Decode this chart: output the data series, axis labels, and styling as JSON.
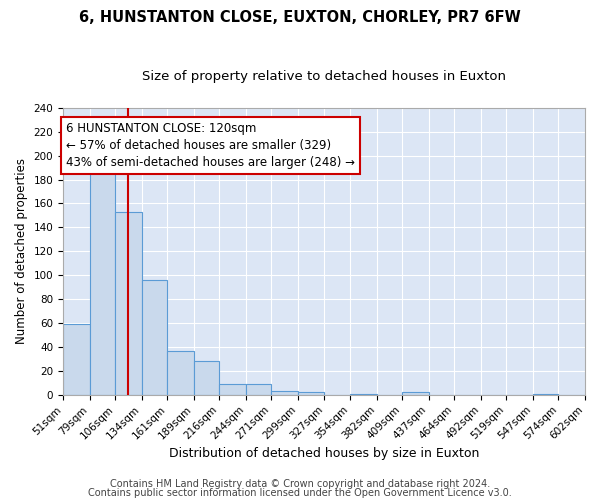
{
  "title": "6, HUNSTANTON CLOSE, EUXTON, CHORLEY, PR7 6FW",
  "subtitle": "Size of property relative to detached houses in Euxton",
  "xlabel": "Distribution of detached houses by size in Euxton",
  "ylabel": "Number of detached properties",
  "bar_edges": [
    51,
    79,
    106,
    134,
    161,
    189,
    216,
    244,
    271,
    299,
    327,
    354,
    382,
    409,
    437,
    464,
    492,
    519,
    547,
    574,
    602
  ],
  "bar_heights": [
    59,
    186,
    153,
    96,
    37,
    28,
    9,
    9,
    3,
    2,
    0,
    1,
    0,
    2,
    0,
    0,
    0,
    0,
    1,
    0
  ],
  "bar_color": "#c9d9ec",
  "bar_edge_color": "#5b9bd5",
  "vline_x": 120,
  "vline_color": "#cc0000",
  "annotation_title": "6 HUNSTANTON CLOSE: 120sqm",
  "annotation_line1": "← 57% of detached houses are smaller (329)",
  "annotation_line2": "43% of semi-detached houses are larger (248) →",
  "annotation_box_color": "#ffffff",
  "annotation_box_edge": "#cc0000",
  "ylim": [
    0,
    240
  ],
  "yticks": [
    0,
    20,
    40,
    60,
    80,
    100,
    120,
    140,
    160,
    180,
    200,
    220,
    240
  ],
  "tick_labels": [
    "51sqm",
    "79sqm",
    "106sqm",
    "134sqm",
    "161sqm",
    "189sqm",
    "216sqm",
    "244sqm",
    "271sqm",
    "299sqm",
    "327sqm",
    "354sqm",
    "382sqm",
    "409sqm",
    "437sqm",
    "464sqm",
    "492sqm",
    "519sqm",
    "547sqm",
    "574sqm",
    "602sqm"
  ],
  "footer1": "Contains HM Land Registry data © Crown copyright and database right 2024.",
  "footer2": "Contains public sector information licensed under the Open Government Licence v3.0.",
  "bg_color": "#ffffff",
  "plot_bg_color": "#dce6f5",
  "grid_color": "#ffffff",
  "title_fontsize": 10.5,
  "subtitle_fontsize": 9.5,
  "xlabel_fontsize": 9,
  "ylabel_fontsize": 8.5,
  "tick_fontsize": 7.5,
  "footer_fontsize": 7,
  "ann_fontsize": 8.5
}
